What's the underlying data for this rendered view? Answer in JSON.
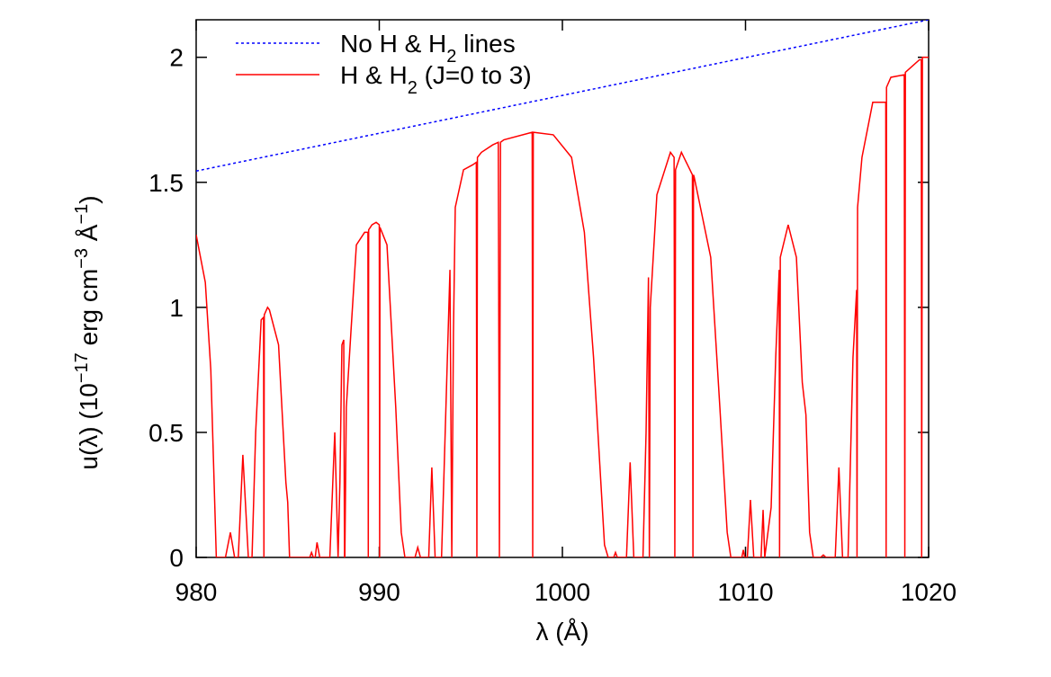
{
  "chart_data": {
    "type": "line",
    "xlabel": "λ (Å)",
    "ylabel": [
      "u(λ) (10",
      "−17",
      " erg cm",
      "−3",
      " Å",
      "−1",
      ")"
    ],
    "xlim": [
      980,
      1020
    ],
    "xticks": [
      980,
      990,
      1000,
      1010,
      1020
    ],
    "ylim": [
      0,
      2.15
    ],
    "yticks": [
      0,
      0.5,
      1,
      1.5,
      2
    ],
    "legend": "top-left",
    "series": [
      {
        "name": [
          "No H & H",
          "2",
          " lines"
        ],
        "color": "#0000ff",
        "dash": "dotted",
        "x": [
          980,
          1020
        ],
        "values": [
          1.545,
          2.15
        ]
      },
      {
        "name": [
          "H & H",
          "2",
          " (J=0 to 3)"
        ],
        "color": "#ff0000",
        "dash": "solid",
        "x": [
          980,
          980.5,
          980.8,
          981.1,
          981.6,
          981.87,
          982.1,
          982.3,
          982.55,
          982.85,
          983.05,
          983.25,
          983.55,
          983.68,
          983.7,
          983.72,
          983.9,
          984.0,
          984.5,
          984.9,
          985.0,
          985.1,
          985.3,
          986.2,
          986.3,
          986.4,
          986.5,
          986.6,
          986.75,
          987.3,
          987.57,
          987.75,
          987.85,
          987.96,
          988.06,
          988.1,
          988.12,
          988.2,
          988.45,
          988.75,
          989.2,
          989.38,
          989.4,
          989.42,
          989.6,
          989.83,
          990.0,
          990.02,
          990.04,
          990.42,
          990.9,
          991.2,
          991.4,
          991.95,
          992.1,
          992.25,
          992.7,
          992.87,
          993.05,
          993.4,
          993.86,
          993.96,
          994.05,
          994.15,
          994.6,
          995.1,
          995.3,
          995.33,
          995.36,
          995.58,
          996.2,
          996.5,
          996.56,
          996.62,
          996.8,
          998.35,
          998.38,
          998.41,
          999.5,
          1000.5,
          1001.2,
          1001.7,
          1002.3,
          1002.5,
          1002.8,
          1002.9,
          1003.0,
          1003.5,
          1003.7,
          1003.9,
          1004.4,
          1004.57,
          1004.7,
          1004.75,
          1004.8,
          1005.16,
          1005.9,
          1006.1,
          1006.14,
          1006.18,
          1006.5,
          1007.1,
          1007.13,
          1007.16,
          1007.2,
          1008.1,
          1008.6,
          1009.0,
          1009.2,
          1009.8,
          1009.88,
          1009.96,
          1010.1,
          1010.27,
          1010.45,
          1010.85,
          1010.96,
          1011.05,
          1011.4,
          1011.65,
          1011.84,
          1011.86,
          1011.9,
          1012.33,
          1012.78,
          1013.1,
          1013.3,
          1013.5,
          1013.7,
          1014.1,
          1014.25,
          1014.4,
          1014.9,
          1015.1,
          1015.3,
          1015.6,
          1015.87,
          1016.07,
          1016.09,
          1016.12,
          1016.36,
          1016.95,
          1017.66,
          1017.68,
          1017.7,
          1017.94,
          1018.67,
          1018.7,
          1018.73,
          1019.5,
          1019.6,
          1019.62,
          1019.66,
          1020
        ],
        "values": [
          1.29,
          1.1,
          0.75,
          0,
          0,
          0.1,
          0,
          0,
          0.41,
          0,
          0,
          0.5,
          0.95,
          0.96,
          0,
          0.97,
          1.0,
          0.99,
          0.85,
          0.3,
          0.22,
          0,
          0,
          0,
          0.02,
          0,
          0,
          0.06,
          0,
          0,
          0.5,
          0,
          0.3,
          0.85,
          0.87,
          0,
          0,
          0.6,
          0.9,
          1.25,
          1.3,
          1.3,
          0,
          1.31,
          1.33,
          1.34,
          1.33,
          0,
          1.32,
          1.25,
          0.6,
          0.1,
          0,
          0,
          0.04,
          0,
          0,
          0.36,
          0,
          0,
          1.15,
          0,
          0.9,
          1.4,
          1.55,
          1.57,
          1.58,
          0,
          1.6,
          1.62,
          1.65,
          1.66,
          0,
          1.66,
          1.67,
          1.7,
          0,
          1.7,
          1.69,
          1.6,
          1.3,
          0.8,
          0.05,
          0,
          0,
          0.02,
          0,
          0,
          0.38,
          0,
          0,
          0.5,
          1.12,
          0,
          1.0,
          1.45,
          1.62,
          1.6,
          0,
          1.55,
          1.62,
          1.53,
          0,
          1.53,
          1.52,
          1.2,
          0.6,
          0.1,
          0,
          0,
          0.03,
          0,
          0,
          0.23,
          0,
          0,
          0.19,
          0,
          0.2,
          0.8,
          1.15,
          0,
          1.2,
          1.33,
          1.2,
          0.7,
          0.57,
          0.1,
          0,
          0,
          0.01,
          0,
          0,
          0.36,
          0,
          0,
          0.8,
          1.07,
          0,
          1.4,
          1.6,
          1.82,
          1.82,
          0,
          1.88,
          1.92,
          1.93,
          0,
          1.94,
          1.99,
          1.99,
          0,
          2.0,
          2.0
        ]
      }
    ]
  }
}
